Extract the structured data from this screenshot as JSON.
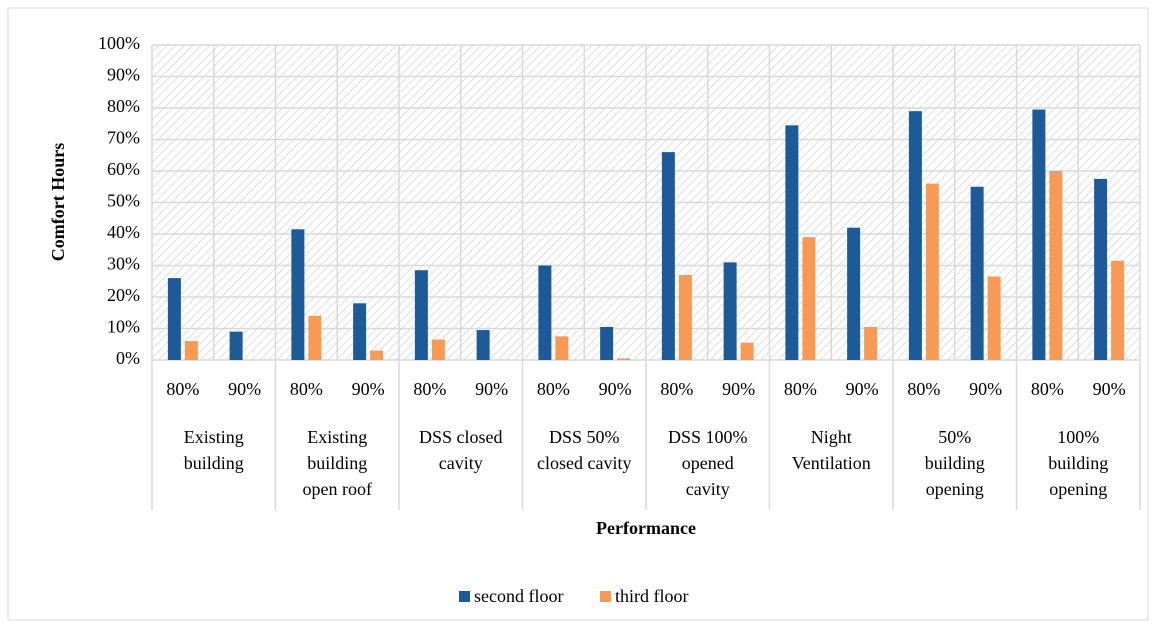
{
  "chart_data": {
    "type": "bar",
    "y_label": "Comfort Hours",
    "x_label": "Performance",
    "groups": [
      "Existing\nbuilding",
      "Existing\nbuilding\nopen roof",
      "DSS closed\ncavity",
      "DSS 50%\nclosed cavity",
      "DSS 100%\nopened\ncavity",
      "Night\nVentilation",
      "50%\nbuilding\nopening",
      "100%\nbuilding\nopening"
    ],
    "categories": [
      "80%",
      "90%",
      "80%",
      "90%",
      "80%",
      "90%",
      "80%",
      "90%",
      "80%",
      "90%",
      "80%",
      "90%",
      "80%",
      "90%",
      "80%",
      "90%"
    ],
    "series": [
      {
        "name": "second floor",
        "color": "#1c5b97",
        "values": [
          26,
          9,
          41.5,
          18,
          28.5,
          9.5,
          30,
          10.5,
          66,
          31,
          74.5,
          42,
          79,
          55,
          79.5,
          57.5
        ]
      },
      {
        "name": "third floor",
        "color": "#f79a55",
        "values": [
          6,
          0,
          14,
          3,
          6.5,
          0,
          7.5,
          0.5,
          27,
          5.5,
          39,
          10.5,
          56,
          26.5,
          60,
          31.5
        ]
      }
    ],
    "ylim": [
      0,
      100
    ],
    "yticks": [
      {
        "value": 0,
        "label": "0%"
      },
      {
        "value": 10,
        "label": "10%"
      },
      {
        "value": 20,
        "label": "20%"
      },
      {
        "value": 30,
        "label": "30%"
      },
      {
        "value": 40,
        "label": "40%"
      },
      {
        "value": 50,
        "label": "50%"
      },
      {
        "value": 60,
        "label": "60%"
      },
      {
        "value": 70,
        "label": "70%"
      },
      {
        "value": 80,
        "label": "80%"
      },
      {
        "value": 90,
        "label": "90%"
      },
      {
        "value": 100,
        "label": "100%"
      }
    ],
    "grid": true,
    "legend": "bottom"
  }
}
